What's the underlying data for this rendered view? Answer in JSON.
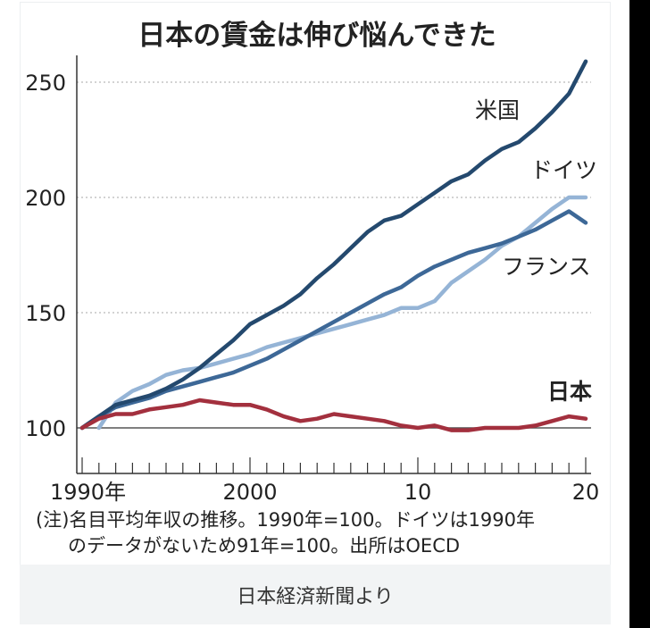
{
  "caption": "日本経済新聞より",
  "chart_data": {
    "type": "line",
    "title": "日本の賃金は伸び悩んできた",
    "xlabel": "",
    "ylabel": "",
    "x_range": [
      1990,
      2020
    ],
    "ylim": [
      80,
      260
    ],
    "yticks": [
      100,
      150,
      200,
      250
    ],
    "xtick_labels": [
      {
        "x": 1990,
        "label": "1990年"
      },
      {
        "x": 2000,
        "label": "2000"
      },
      {
        "x": 2010,
        "label": "10"
      },
      {
        "x": 2020,
        "label": "20"
      }
    ],
    "grid": "horizontal dotted",
    "baseline": 100,
    "series": [
      {
        "name": "米国",
        "color": "#24496e",
        "x": [
          1990,
          1991,
          1992,
          1993,
          1994,
          1995,
          1996,
          1997,
          1998,
          1999,
          2000,
          2001,
          2002,
          2003,
          2004,
          2005,
          2006,
          2007,
          2008,
          2009,
          2010,
          2011,
          2012,
          2013,
          2014,
          2015,
          2016,
          2017,
          2018,
          2019,
          2020
        ],
        "values": [
          100,
          105,
          110,
          112,
          114,
          117,
          121,
          126,
          132,
          138,
          145,
          149,
          153,
          158,
          165,
          171,
          178,
          185,
          190,
          192,
          197,
          202,
          207,
          210,
          216,
          221,
          224,
          230,
          237,
          245,
          259
        ]
      },
      {
        "name": "ドイツ",
        "color": "#95b4d6",
        "x": [
          1991,
          1992,
          1993,
          1994,
          1995,
          1996,
          1997,
          1998,
          1999,
          2000,
          2001,
          2002,
          2003,
          2004,
          2005,
          2006,
          2007,
          2008,
          2009,
          2010,
          2011,
          2012,
          2013,
          2014,
          2015,
          2016,
          2017,
          2018,
          2019,
          2020
        ],
        "values": [
          100,
          111,
          116,
          119,
          123,
          125,
          126,
          128,
          130,
          132,
          135,
          137,
          139,
          141,
          143,
          145,
          147,
          149,
          152,
          152,
          155,
          163,
          168,
          173,
          179,
          183,
          189,
          195,
          200,
          200
        ]
      },
      {
        "name": "フランス",
        "color": "#3d6897",
        "x": [
          1990,
          1991,
          1992,
          1993,
          1994,
          1995,
          1996,
          1997,
          1998,
          1999,
          2000,
          2001,
          2002,
          2003,
          2004,
          2005,
          2006,
          2007,
          2008,
          2009,
          2010,
          2011,
          2012,
          2013,
          2014,
          2015,
          2016,
          2017,
          2018,
          2019,
          2020
        ],
        "values": [
          100,
          105,
          109,
          111,
          113,
          116,
          118,
          120,
          122,
          124,
          127,
          130,
          134,
          138,
          142,
          146,
          150,
          154,
          158,
          161,
          166,
          170,
          173,
          176,
          178,
          180,
          183,
          186,
          190,
          194,
          189
        ]
      },
      {
        "name": "日本",
        "color": "#a3303e",
        "x": [
          1990,
          1991,
          1992,
          1993,
          1994,
          1995,
          1996,
          1997,
          1998,
          1999,
          2000,
          2001,
          2002,
          2003,
          2004,
          2005,
          2006,
          2007,
          2008,
          2009,
          2010,
          2011,
          2012,
          2013,
          2014,
          2015,
          2016,
          2017,
          2018,
          2019,
          2020
        ],
        "values": [
          100,
          104,
          106,
          106,
          108,
          109,
          110,
          112,
          111,
          110,
          110,
          108,
          105,
          103,
          104,
          106,
          105,
          104,
          103,
          101,
          100,
          101,
          99,
          99,
          100,
          100,
          100,
          101,
          103,
          105,
          104
        ]
      }
    ],
    "annotations": [
      "(注)名目平均年収の推移。1990年=100。ドイツは1990年",
      "のデータがないため91年=100。出所はOECD"
    ]
  }
}
